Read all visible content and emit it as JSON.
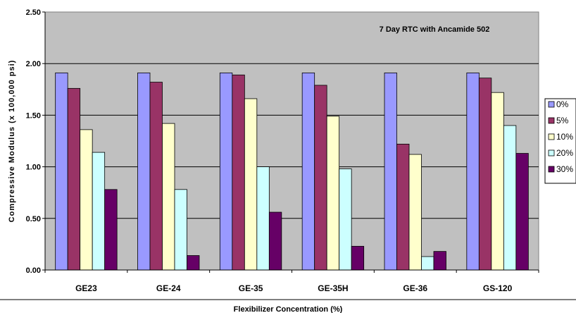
{
  "chart_data": {
    "type": "bar",
    "title": "",
    "annotation": "7 Day RTC with Ancamide 502",
    "xlabel": "Flexibilizer Concentration (%)",
    "ylabel": "Compressive Modulus (x 100,000 psi)",
    "ylim": [
      0,
      2.5
    ],
    "yticks": [
      "0.00",
      "0.50",
      "1.00",
      "1.50",
      "2.00",
      "2.50"
    ],
    "categories": [
      "GE23",
      "GE-24",
      "GE-35",
      "GE-35H",
      "GE-36",
      "GS-120"
    ],
    "series": [
      {
        "name": "0%",
        "color": "#9999ff",
        "values": [
          1.91,
          1.91,
          1.91,
          1.91,
          1.91,
          1.91
        ]
      },
      {
        "name": "5%",
        "color": "#993366",
        "values": [
          1.76,
          1.82,
          1.89,
          1.79,
          1.22,
          1.86
        ]
      },
      {
        "name": "10%",
        "color": "#ffffcc",
        "values": [
          1.36,
          1.42,
          1.66,
          1.49,
          1.12,
          1.72
        ]
      },
      {
        "name": "20%",
        "color": "#ccffff",
        "values": [
          1.14,
          0.78,
          1.0,
          0.98,
          0.13,
          1.4
        ]
      },
      {
        "name": "30%",
        "color": "#660066",
        "values": [
          0.78,
          0.14,
          0.56,
          0.23,
          0.18,
          1.13
        ]
      }
    ],
    "grid": true,
    "plot_background": "#c0c0c0",
    "legend_position": "right"
  }
}
